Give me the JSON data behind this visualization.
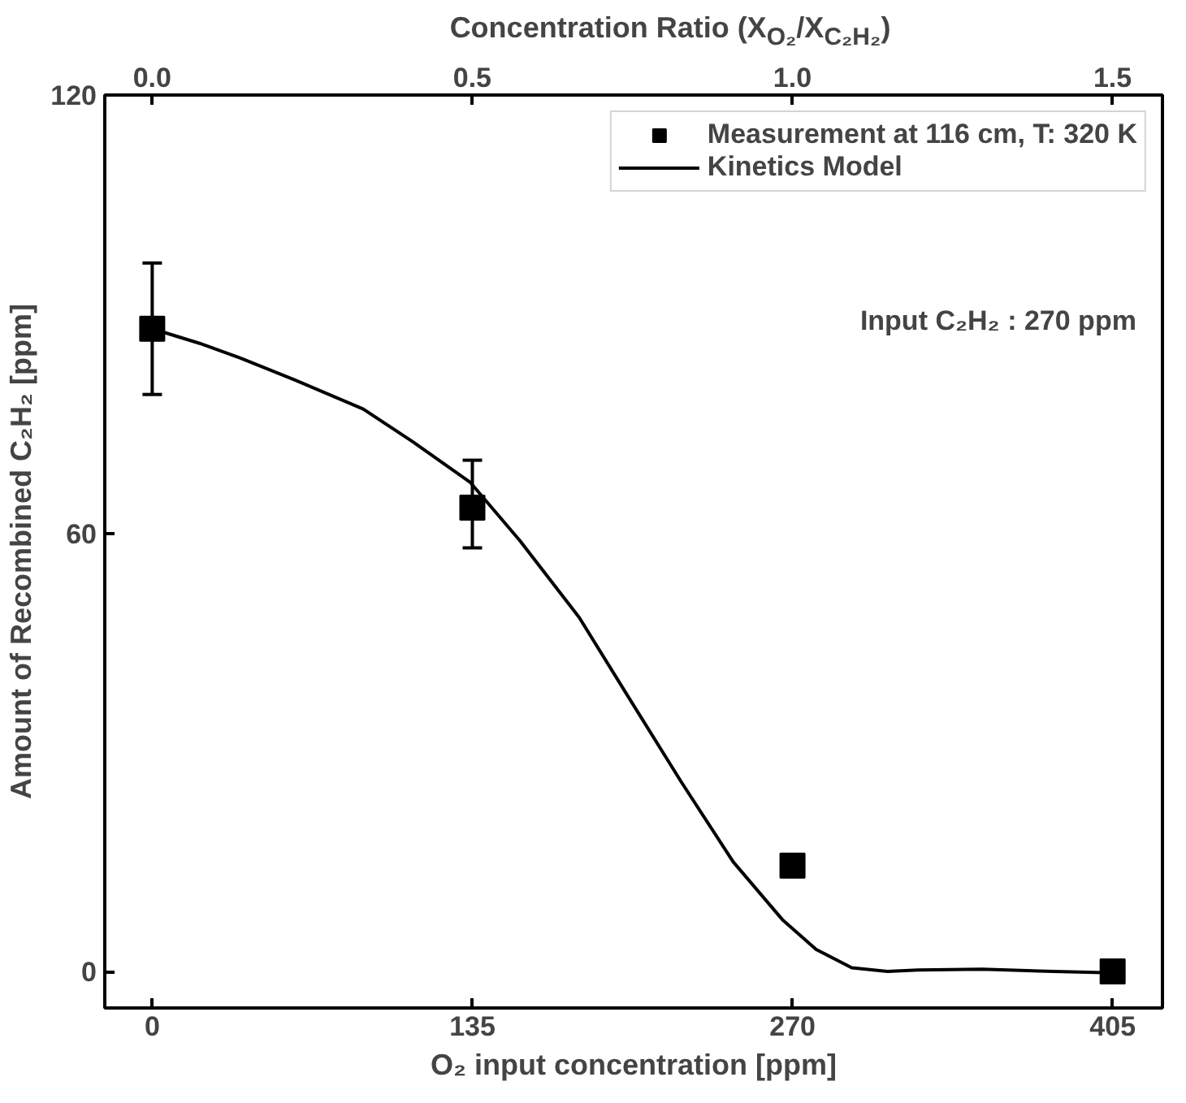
{
  "chart_data": {
    "type": "scatter",
    "xlabel": "O₂ input concentration [ppm]",
    "ylabel": "Amount of Recombined C₂H₂ [ppm]",
    "x2label": "Concentration Ratio (X$_{O₂}$/X$_{C₂H₂}$)",
    "xlim": [
      -20,
      426
    ],
    "xticks": [
      0,
      135,
      270,
      405
    ],
    "x2lim": [
      -0.074,
      1.578
    ],
    "x2ticks": [
      {
        "value": 0,
        "label": "0.0"
      },
      0.5,
      {
        "value": 1,
        "label": "1.0"
      },
      1.5
    ],
    "ylim": [
      -5,
      120
    ],
    "yticks": [
      0,
      60,
      120
    ],
    "grid": false,
    "legend": "top right",
    "annotations": [
      "Input C₂H₂ : 270 ppm"
    ],
    "series": [
      {
        "name": "Measurement at 116 cm, T: 320 K",
        "marker": "square",
        "color": "#000000",
        "x": [
          0,
          135,
          270,
          405
        ],
        "values": [
          88,
          63.5,
          14.5,
          0
        ],
        "errors": [
          [
            79,
            97
          ],
          [
            58,
            70
          ],
          null,
          null
        ]
      },
      {
        "name": "Kinetics Model",
        "type": "line",
        "line_style": "solid",
        "color": "#000000",
        "x": [
          0,
          20,
          37,
          60,
          89,
          110,
          134,
          155,
          180,
          200,
          223,
          245,
          266,
          280,
          295,
          310,
          323,
          350,
          380,
          405
        ],
        "values": [
          88,
          86,
          84,
          81,
          77,
          72.5,
          67,
          59,
          48.5,
          38,
          26,
          15,
          7,
          3,
          0.5,
          0,
          0.2,
          0.3,
          0,
          -0.2
        ]
      }
    ]
  }
}
